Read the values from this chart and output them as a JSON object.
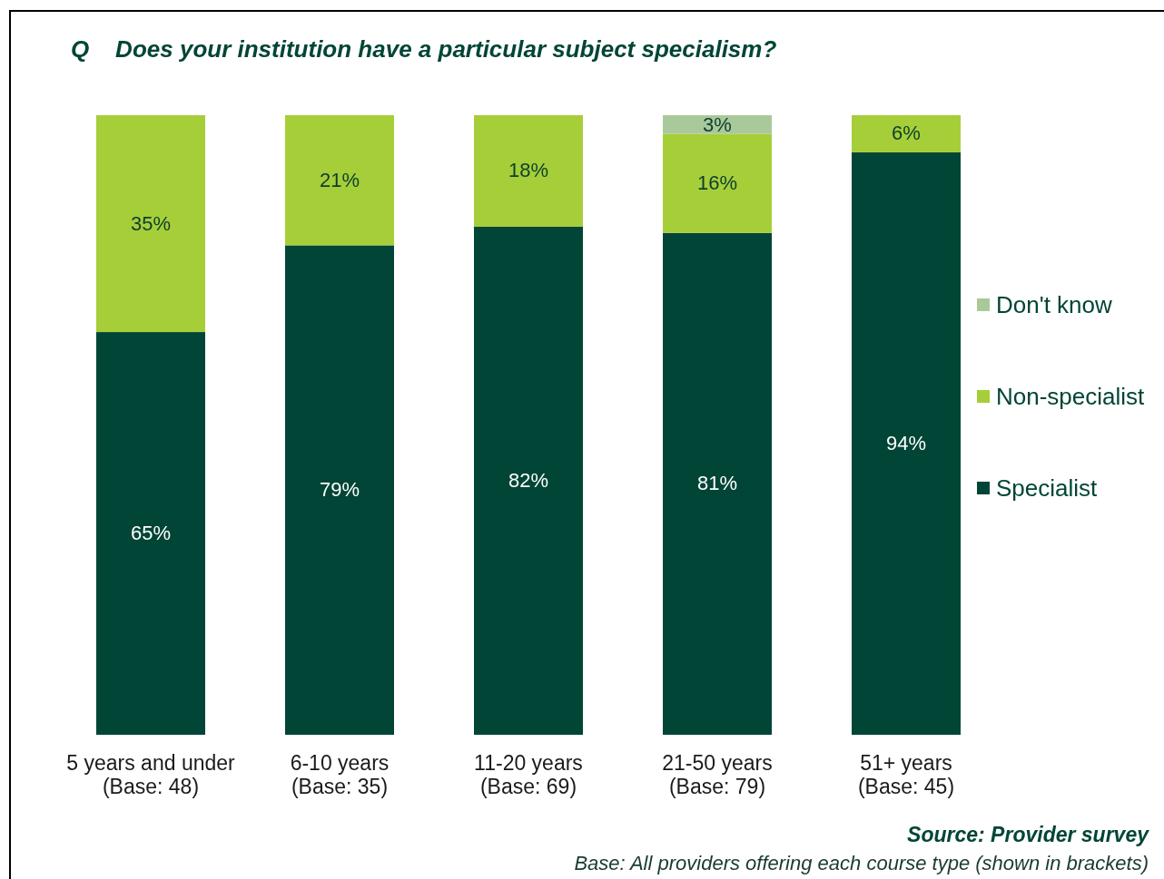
{
  "chart_data": {
    "type": "bar",
    "stacked": true,
    "title": "Q    Does your institution have a particular subject specialism?",
    "categories": [
      "5 years and under\n(Base: 48)",
      "6-10 years\n(Base: 35)",
      "11-20 years\n(Base: 69)",
      "21-50 years\n(Base: 79)",
      "51+ years\n(Base: 45)"
    ],
    "series": [
      {
        "name": "Specialist",
        "color": "#004536",
        "values": [
          65,
          79,
          82,
          81,
          94
        ],
        "value_labels": [
          "65%",
          "79%",
          "82%",
          "81%",
          "94%"
        ]
      },
      {
        "name": "Non-specialist",
        "color": "#a6ce39",
        "values": [
          35,
          21,
          18,
          16,
          6
        ],
        "value_labels": [
          "35%",
          "21%",
          "18%",
          "16%",
          "6%"
        ]
      },
      {
        "name": "Don't know",
        "color": "#a9c99a",
        "values": [
          null,
          null,
          null,
          3,
          null
        ],
        "value_labels": [
          null,
          null,
          null,
          "3%",
          null
        ]
      }
    ],
    "legend": "right",
    "annotations": [
      "Source: Provider survey",
      "Base: All providers offering each course type (shown in brackets)"
    ]
  }
}
